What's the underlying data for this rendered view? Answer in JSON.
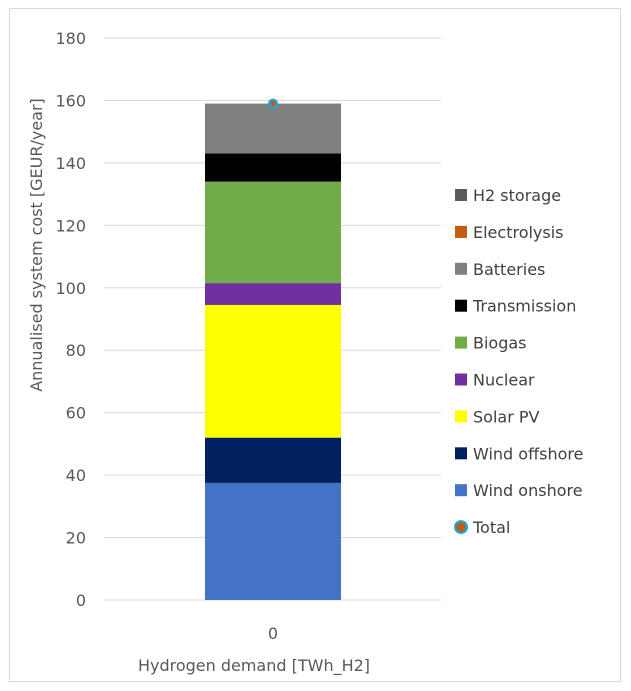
{
  "chart_data": {
    "type": "bar",
    "stacked": true,
    "categories": [
      "0"
    ],
    "xlabel": "Hydrogen demand [TWh_H2]",
    "ylabel": "Annualised system cost [GEUR/year]",
    "ylim": [
      0,
      180
    ],
    "yticks": [
      0,
      20,
      40,
      60,
      80,
      100,
      120,
      140,
      160,
      180
    ],
    "grid": true,
    "legend_position": "right",
    "series": [
      {
        "name": "Wind onshore",
        "color": "#4472c4",
        "values": [
          37.5
        ]
      },
      {
        "name": "Wind offshore",
        "color": "#002060",
        "values": [
          14.5
        ]
      },
      {
        "name": "Solar PV",
        "color": "#ffff00",
        "values": [
          42.5
        ]
      },
      {
        "name": "Nuclear",
        "color": "#7030a0",
        "values": [
          7.0
        ]
      },
      {
        "name": "Biogas",
        "color": "#70ad47",
        "values": [
          32.5
        ]
      },
      {
        "name": "Transmission",
        "color": "#000000",
        "values": [
          9.0
        ]
      },
      {
        "name": "Batteries",
        "color": "#808080",
        "values": [
          16.0
        ]
      },
      {
        "name": "Electrolysis",
        "color": "#c55a11",
        "values": [
          0
        ]
      },
      {
        "name": "H2 storage",
        "color": "#595959",
        "values": [
          0
        ]
      }
    ],
    "total": {
      "name": "Total",
      "values": [
        159.0
      ],
      "marker_fill": "#c55a11",
      "marker_edge": "#00b0f0"
    },
    "legend_order": [
      "H2 storage",
      "Electrolysis",
      "Batteries",
      "Transmission",
      "Biogas",
      "Nuclear",
      "Solar PV",
      "Wind offshore",
      "Wind onshore",
      "Total"
    ]
  }
}
